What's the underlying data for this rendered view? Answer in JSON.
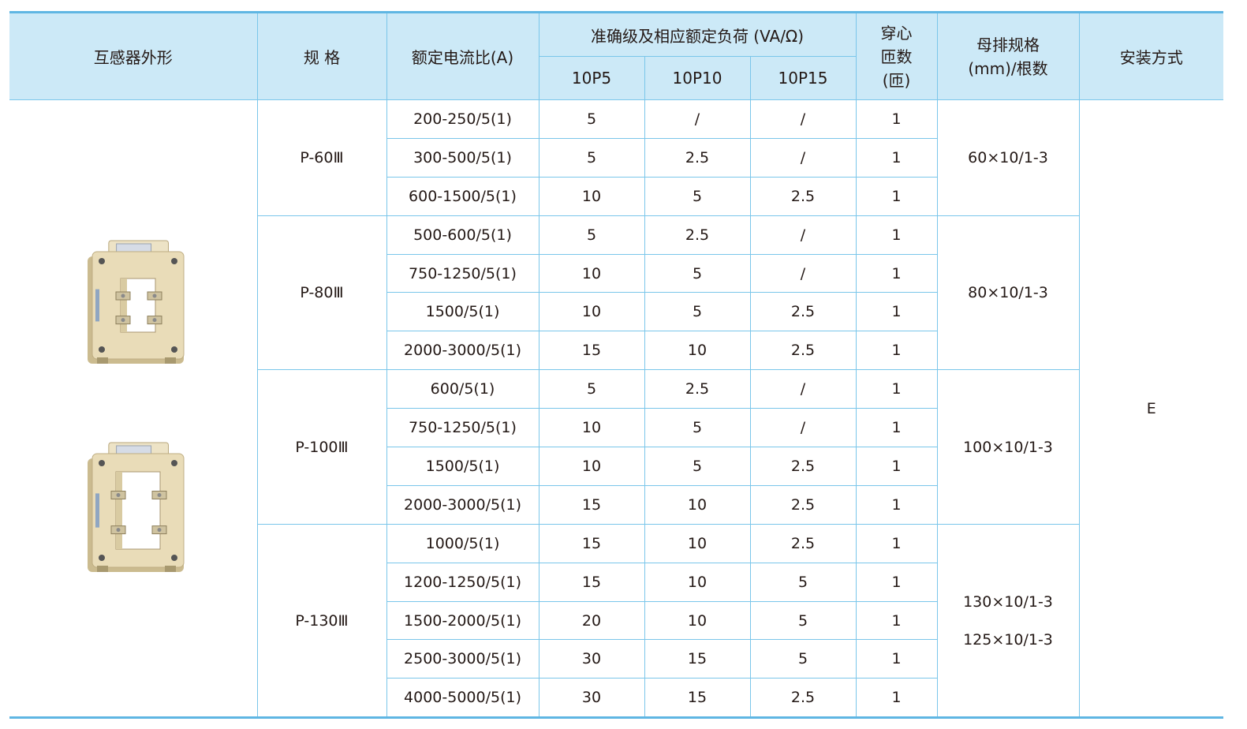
{
  "headers": {
    "appearance": "互感器外形",
    "spec": "规 格",
    "ratio": "额定电流比(A)",
    "accuracy": "准确级及相应额定负荷 (VA/Ω)",
    "c1": "10P5",
    "c2": "10P10",
    "c3": "10P15",
    "turns": [
      "穿心",
      "匝数",
      "(匝)"
    ],
    "busbar": [
      "母排规格",
      "(mm)/根数"
    ],
    "install": "安装方式"
  },
  "install_value": "E",
  "groups": [
    {
      "model": "P-60Ⅲ",
      "busbar": [
        "60×10/1-3"
      ],
      "rows": [
        {
          "ratio": "200-250/5(1)",
          "v1": "5",
          "v2": "/",
          "v3": "/",
          "turns": "1"
        },
        {
          "ratio": "300-500/5(1)",
          "v1": "5",
          "v2": "2.5",
          "v3": "/",
          "turns": "1"
        },
        {
          "ratio": "600-1500/5(1)",
          "v1": "10",
          "v2": "5",
          "v3": "2.5",
          "turns": "1"
        }
      ]
    },
    {
      "model": "P-80Ⅲ",
      "busbar": [
        "80×10/1-3"
      ],
      "rows": [
        {
          "ratio": "500-600/5(1)",
          "v1": "5",
          "v2": "2.5",
          "v3": "/",
          "turns": "1"
        },
        {
          "ratio": "750-1250/5(1)",
          "v1": "10",
          "v2": "5",
          "v3": "/",
          "turns": "1"
        },
        {
          "ratio": "1500/5(1)",
          "v1": "10",
          "v2": "5",
          "v3": "2.5",
          "turns": "1"
        },
        {
          "ratio": "2000-3000/5(1)",
          "v1": "15",
          "v2": "10",
          "v3": "2.5",
          "turns": "1"
        }
      ]
    },
    {
      "model": "P-100Ⅲ",
      "busbar": [
        "100×10/1-3"
      ],
      "rows": [
        {
          "ratio": "600/5(1)",
          "v1": "5",
          "v2": "2.5",
          "v3": "/",
          "turns": "1"
        },
        {
          "ratio": "750-1250/5(1)",
          "v1": "10",
          "v2": "5",
          "v3": "/",
          "turns": "1"
        },
        {
          "ratio": "1500/5(1)",
          "v1": "10",
          "v2": "5",
          "v3": "2.5",
          "turns": "1"
        },
        {
          "ratio": "2000-3000/5(1)",
          "v1": "15",
          "v2": "10",
          "v3": "2.5",
          "turns": "1"
        }
      ]
    },
    {
      "model": "P-130Ⅲ",
      "busbar": [
        "130×10/1-3",
        "125×10/1-3"
      ],
      "rows": [
        {
          "ratio": "1000/5(1)",
          "v1": "15",
          "v2": "10",
          "v3": "2.5",
          "turns": "1"
        },
        {
          "ratio": "1200-1250/5(1)",
          "v1": "15",
          "v2": "10",
          "v3": "5",
          "turns": "1"
        },
        {
          "ratio": "1500-2000/5(1)",
          "v1": "20",
          "v2": "10",
          "v3": "5",
          "turns": "1"
        },
        {
          "ratio": "2500-3000/5(1)",
          "v1": "30",
          "v2": "15",
          "v3": "5",
          "turns": "1"
        },
        {
          "ratio": "4000-5000/5(1)",
          "v1": "30",
          "v2": "15",
          "v3": "2.5",
          "turns": "1"
        }
      ]
    }
  ],
  "colors": {
    "header_bg": "#cce9f7",
    "border": "#7ac6ea",
    "text": "#231815",
    "product_body": "#e9dcb8"
  },
  "images": [
    "current-transformer-small-photo",
    "current-transformer-large-photo"
  ]
}
